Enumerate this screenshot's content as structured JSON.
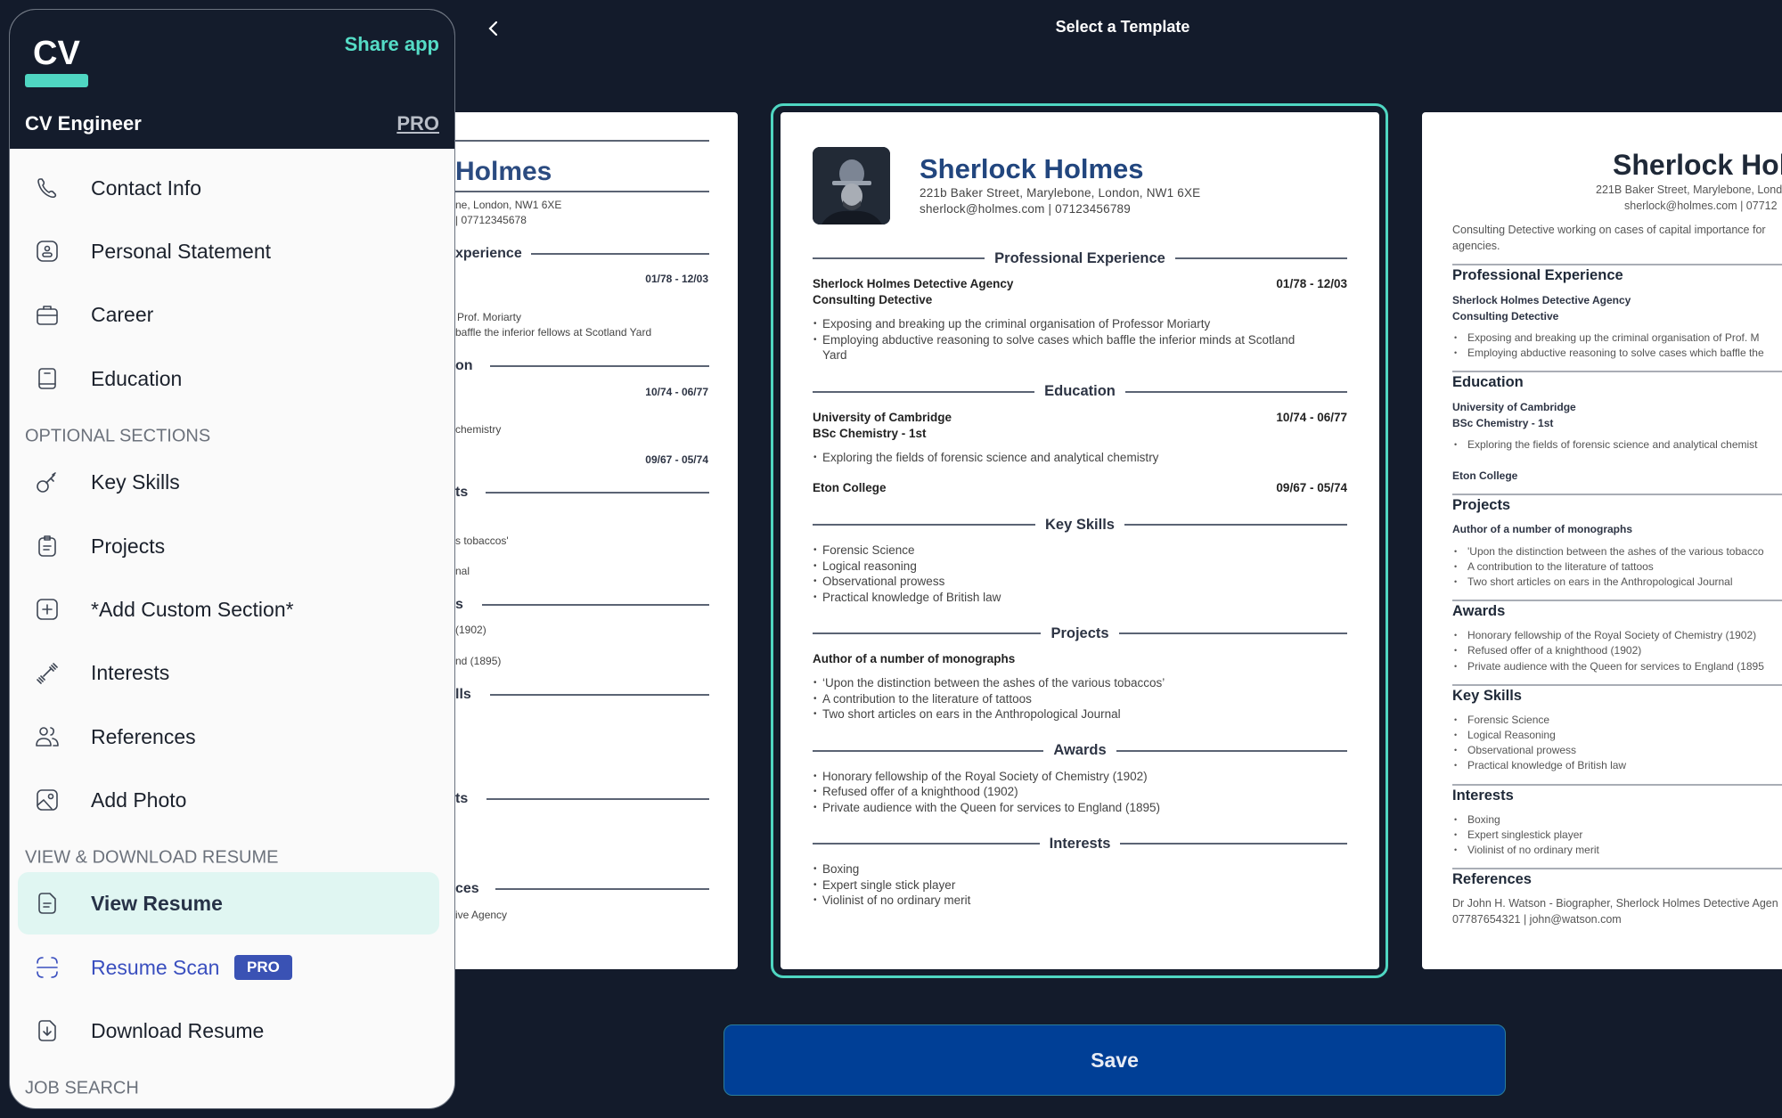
{
  "header": {
    "title": "Select a Template",
    "back_icon": "chevron-left-icon"
  },
  "sidebar": {
    "logo": "CV",
    "share_label": "Share app",
    "app_name": "CV Engineer",
    "pro_link": "PRO",
    "accent_color": "#4fd6c2",
    "items": [
      {
        "label": "Contact Info",
        "icon": "phone-icon"
      },
      {
        "label": "Personal Statement",
        "icon": "person-card-icon"
      },
      {
        "label": "Career",
        "icon": "briefcase-icon"
      },
      {
        "label": "Education",
        "icon": "book-icon"
      },
      {
        "label": "Key Skills",
        "icon": "key-icon"
      },
      {
        "label": "Projects",
        "icon": "clipboard-icon"
      },
      {
        "label": "*Add Custom Section*",
        "icon": "plus-square-icon"
      },
      {
        "label": "Interests",
        "icon": "dumbbell-icon"
      },
      {
        "label": "References",
        "icon": "people-icon"
      },
      {
        "label": "Add Photo",
        "icon": "image-icon"
      },
      {
        "label": "View Resume",
        "icon": "document-icon",
        "active": true
      },
      {
        "label": "Resume Scan",
        "icon": "scan-icon",
        "badge": "PRO"
      },
      {
        "label": "Download Resume",
        "icon": "download-icon"
      }
    ],
    "sections": [
      "OPTIONAL SECTIONS",
      "VIEW & DOWNLOAD RESUME",
      "JOB SEARCH"
    ]
  },
  "template_left": {
    "name": "Holmes",
    "address": "ne, London, NW1 6XE",
    "contact": "| 07712345678",
    "fragments": [
      "xperience",
      "01/78 - 12/03",
      "Prof. Moriarty",
      "baffle the inferior fellows at Scotland Yard",
      "on",
      "10/74 - 06/77",
      "chemistry",
      "09/67 - 05/74",
      "ts",
      "s tobaccos'",
      "nal",
      "s",
      "(1902)",
      "nd (1895)",
      "lls",
      "ts",
      "ces",
      "ive Agency"
    ]
  },
  "template_center": {
    "name": "Sherlock Holmes",
    "address": "221b Baker Street, Marylebone, London, NW1 6XE",
    "contact": "sherlock@holmes.com | 07123456789",
    "experience": {
      "heading": "Professional Experience",
      "company": "Sherlock Holmes Detective Agency",
      "dates": "01/78 - 12/03",
      "role": "Consulting Detective",
      "bullets": [
        "Exposing and breaking up the criminal organisation of Professor Moriarty",
        "Employing abductive reasoning to solve cases which baffle the inferior minds at Scotland Yard"
      ]
    },
    "education": {
      "heading": "Education",
      "entries": [
        {
          "school": "University of Cambridge",
          "dates": "10/74 - 06/77",
          "degree": "BSc Chemistry - 1st",
          "bullet": "Exploring the fields of forensic science and analytical chemistry"
        },
        {
          "school": "Eton College",
          "dates": "09/67 - 05/74"
        }
      ]
    },
    "skills": {
      "heading": "Key Skills",
      "items": [
        "Forensic Science",
        "Logical reasoning",
        "Observational prowess",
        "Practical knowledge of British law"
      ]
    },
    "projects": {
      "heading": "Projects",
      "title": "Author of a number of monographs",
      "items": [
        "‘Upon the distinction between the ashes of the various tobaccos’",
        "A contribution to the literature of tattoos",
        "Two short articles on ears in the Anthropological Journal"
      ]
    },
    "awards": {
      "heading": "Awards",
      "items": [
        "Honorary fellowship of the Royal Society of Chemistry (1902)",
        "Refused offer of a knighthood (1902)",
        "Private audience with the Queen for services to England (1895)"
      ]
    },
    "interests": {
      "heading": "Interests",
      "items": [
        "Boxing",
        "Expert single stick player",
        "Violinist of no ordinary merit"
      ]
    }
  },
  "template_right": {
    "name": "Sherlock Holm",
    "address": "221B Baker Street, Marylebone, Lond",
    "contact": "sherlock@holmes.com | 07712",
    "summary": [
      "Consulting Detective working on cases of capital importance for",
      "agencies."
    ],
    "experience": {
      "heading": "Professional Experience",
      "company": "Sherlock Holmes Detective Agency",
      "role": "Consulting Detective",
      "bullets": [
        "Exposing and breaking up the criminal organisation of Prof. M",
        "Employing abductive reasoning to solve cases which baffle the"
      ]
    },
    "education": {
      "heading": "Education",
      "school": "University of Cambridge",
      "degree": "BSc Chemistry - 1st",
      "bullet": "Exploring the fields of forensic science and analytical chemist",
      "school2": "Eton College"
    },
    "projects": {
      "heading": "Projects",
      "title": "Author of a number of monographs",
      "items": [
        "'Upon the distinction between the ashes of the various tobacco",
        "A contribution to the literature of tattoos",
        "Two short articles on ears in the Anthropological Journal"
      ]
    },
    "awards": {
      "heading": "Awards",
      "items": [
        "Honorary fellowship of the Royal Society of Chemistry (1902)",
        "Refused offer of a knighthood (1902)",
        "Private audience with the Queen for services to England (1895"
      ]
    },
    "skills": {
      "heading": "Key Skills",
      "items": [
        "Forensic Science",
        "Logical Reasoning",
        "Observational prowess",
        "Practical knowledge of British law"
      ]
    },
    "interests": {
      "heading": "Interests",
      "items": [
        "Boxing",
        "Expert singlestick player",
        "Violinist of no ordinary merit"
      ]
    },
    "references": {
      "heading": "References",
      "lines": [
        "Dr John H. Watson - Biographer, Sherlock Holmes Detective Agen",
        "07787654321 | john@watson.com"
      ]
    }
  },
  "save_label": "Save",
  "colors": {
    "background": "#131b2b",
    "save": "#003f96",
    "selected_border": "#4fd6c2",
    "name_blue": "#22467e",
    "scan_blue": "#3a4fbf"
  }
}
